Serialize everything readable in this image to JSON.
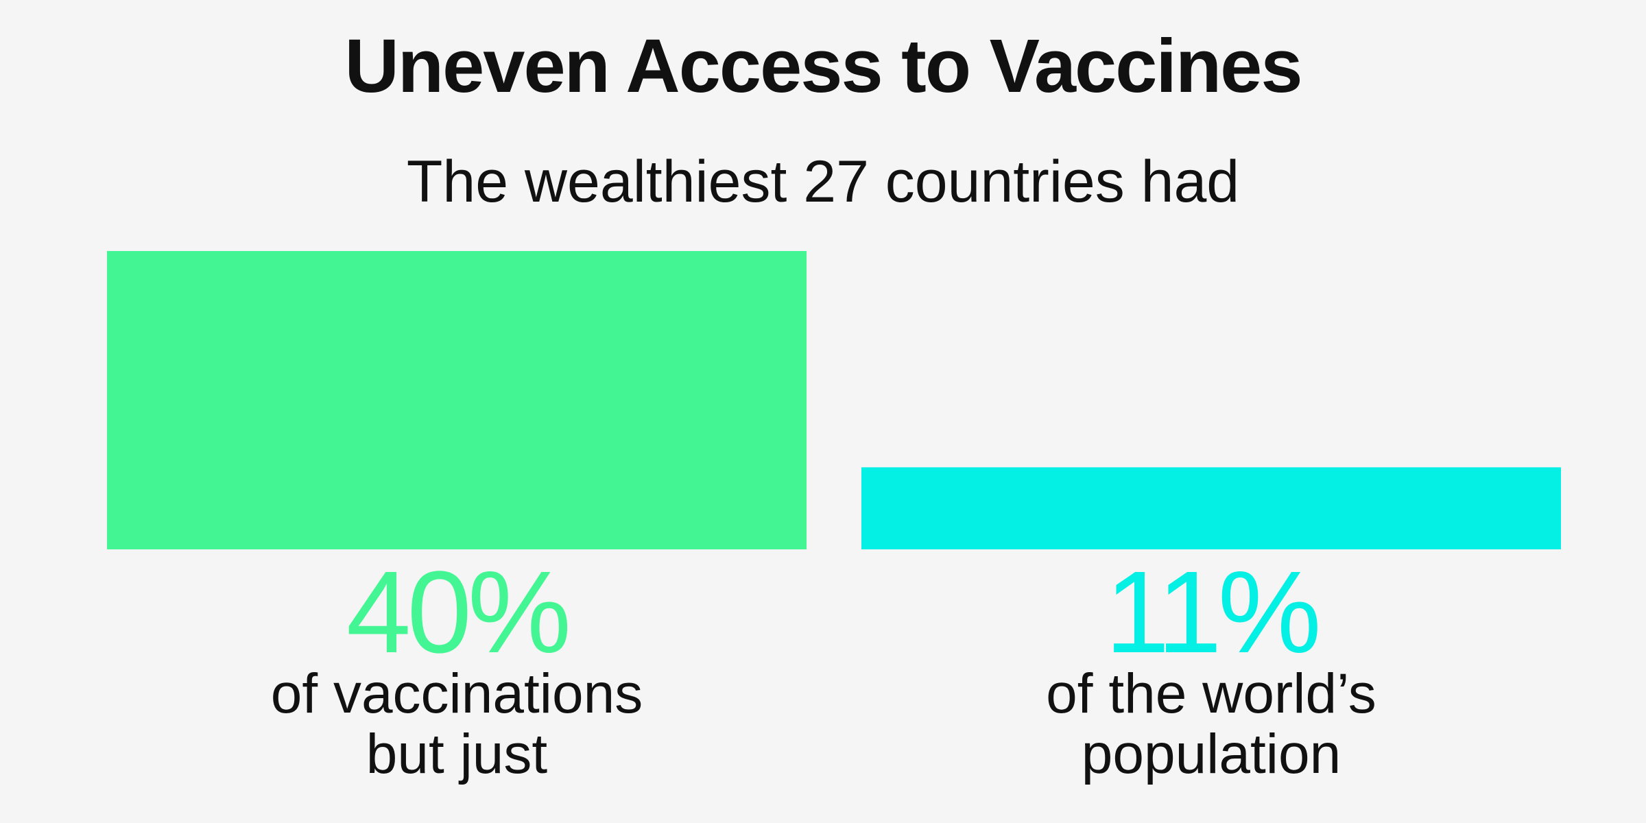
{
  "chart_data": {
    "type": "bar",
    "title": "Uneven Access to Vaccines",
    "subtitle": "The wealthiest 27 countries had",
    "categories": [
      "of vaccinations but just",
      "of the world’s population"
    ],
    "values": [
      40,
      11
    ],
    "value_labels": [
      "40%",
      "11%"
    ],
    "caption_lines": [
      [
        "of vaccinations",
        "but just"
      ],
      [
        "of the world’s",
        "population"
      ]
    ],
    "colors": [
      "#43f693",
      "#05f0e4"
    ],
    "ylim": [
      0,
      40
    ],
    "grid": false,
    "legend": "none"
  }
}
